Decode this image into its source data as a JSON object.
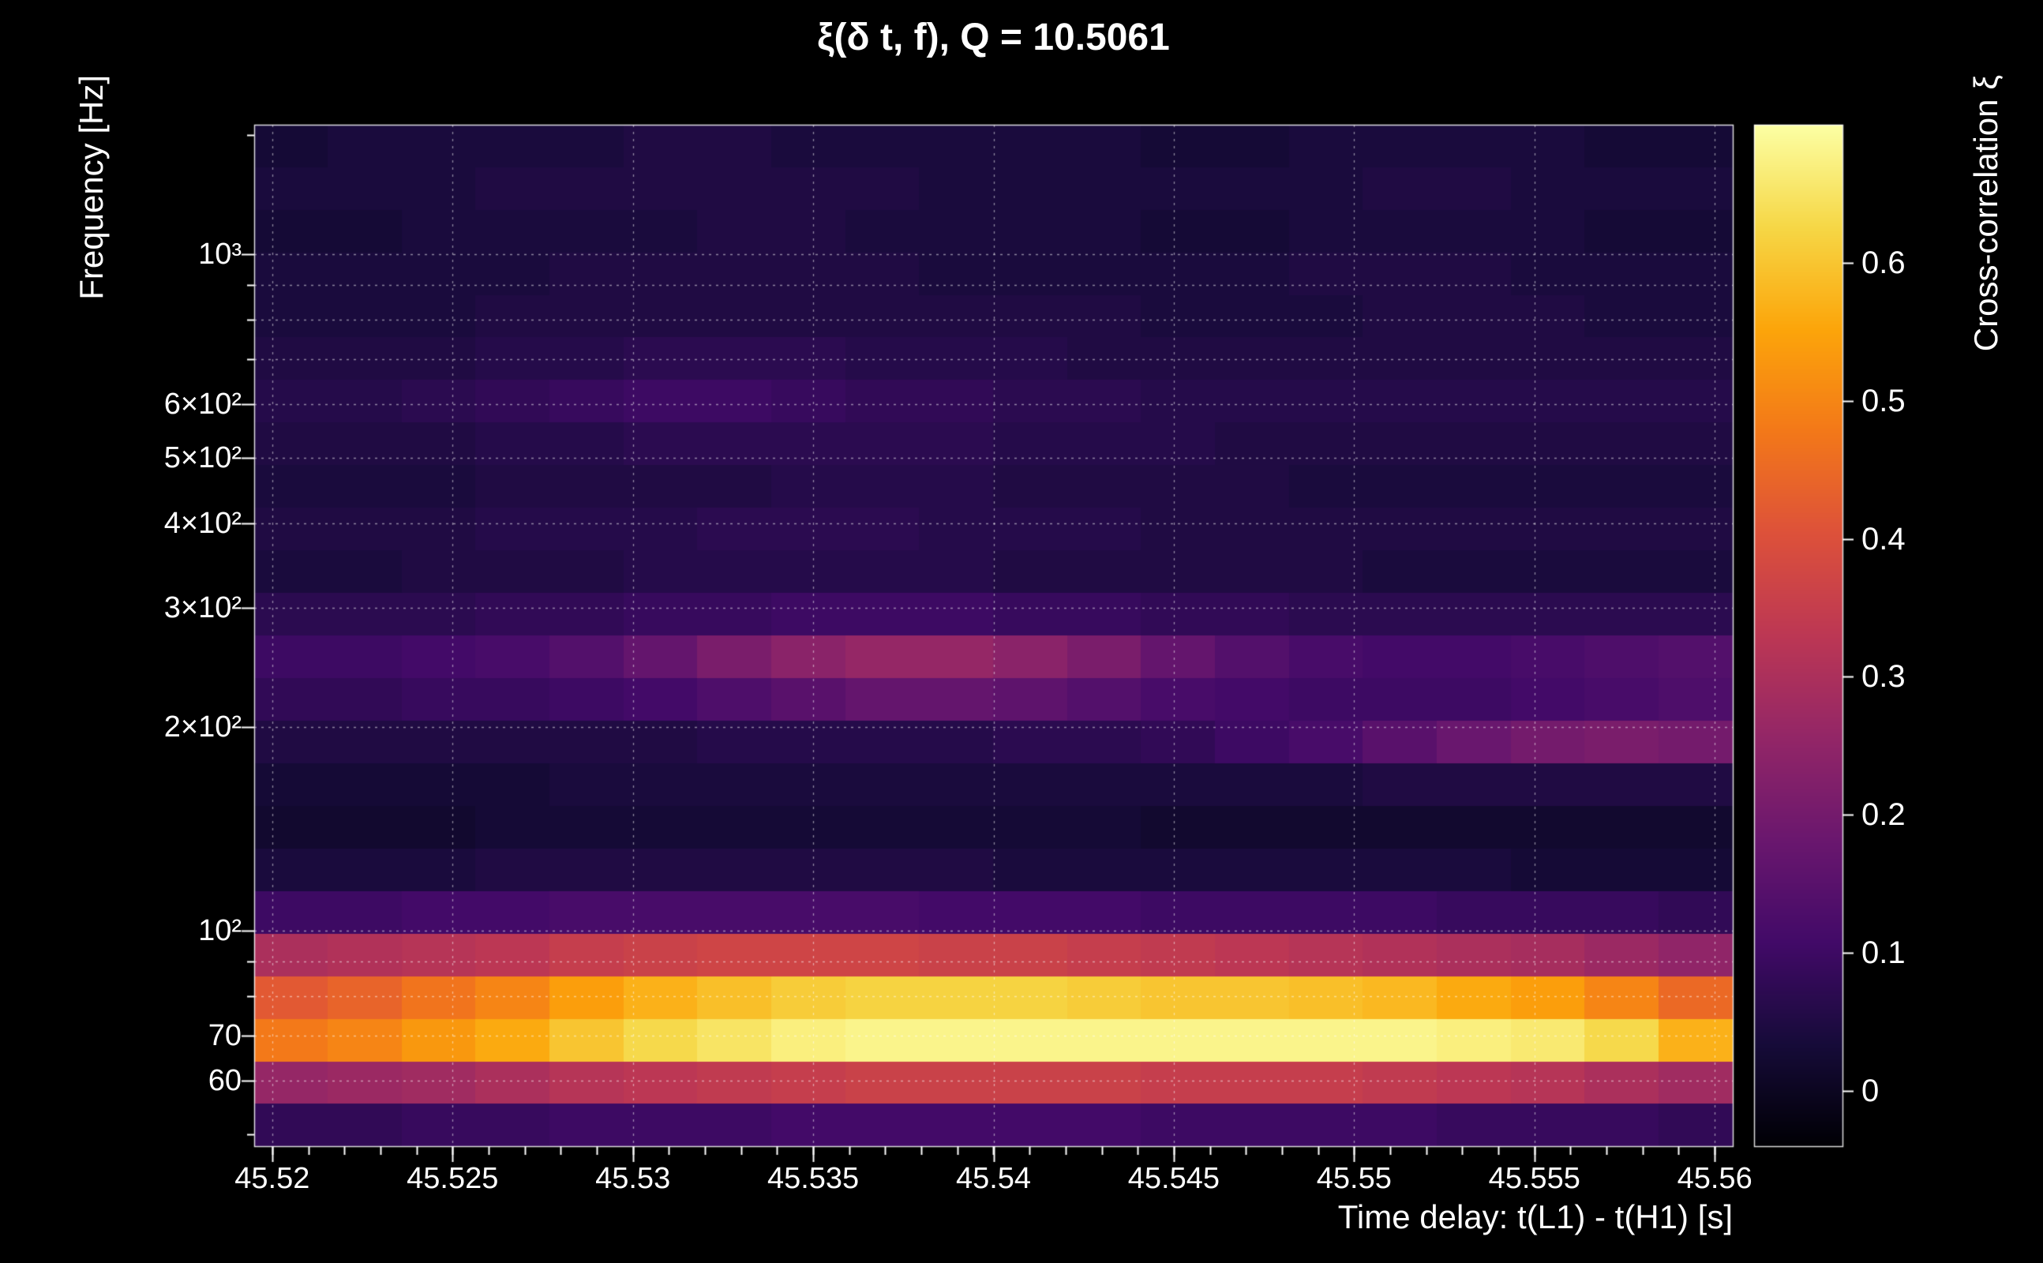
{
  "colors": {
    "background": "#000000",
    "text": "#ffffff",
    "grid": "#cccccc",
    "frame": "#ffffff"
  },
  "chart_data": {
    "type": "heatmap",
    "title": "ξ(δ t, f), Q = 10.5061",
    "xlabel": "Time delay: t(L1) - t(H1) [s]",
    "ylabel": "Frequency [Hz]",
    "colorbar_label": "Cross-correlation ξ",
    "x_range_s": [
      45.5195,
      45.5605
    ],
    "y_range_hz": [
      48,
      1554
    ],
    "y_scale": "log",
    "color_range": [
      -0.04,
      0.7
    ],
    "x_ticks": [
      45.52,
      45.525,
      45.53,
      45.535,
      45.54,
      45.545,
      45.55,
      45.555,
      45.56
    ],
    "x_tick_labels": [
      "45.52",
      "45.525",
      "45.53",
      "45.535",
      "45.54",
      "45.545",
      "45.55",
      "45.555",
      "45.56"
    ],
    "x_minor_tick_step": 0.001,
    "y_ticks_major": [
      60,
      70,
      100,
      200,
      300,
      400,
      500,
      600,
      1000
    ],
    "y_tick_labels": [
      "60",
      "70",
      "10²",
      "2×10²",
      "3×10²",
      "4×10²",
      "5×10²",
      "6×10²",
      "10³"
    ],
    "y_ticks_minor": [
      50,
      80,
      90,
      700,
      800,
      900,
      1500
    ],
    "grid_freqs_hz": [
      60,
      70,
      80,
      90,
      100,
      200,
      300,
      400,
      500,
      600,
      700,
      800,
      900,
      1000
    ],
    "colorbar_ticks": [
      0,
      0.1,
      0.2,
      0.3,
      0.4,
      0.5,
      0.6
    ],
    "colorbar_tick_labels": [
      "0",
      "0.1",
      "0.2",
      "0.3",
      "0.4",
      "0.5",
      "0.6"
    ],
    "colormap": {
      "name": "inferno",
      "stops": [
        [
          0.0,
          [
            0,
            0,
            4
          ]
        ],
        [
          0.1,
          [
            22,
            11,
            57
          ]
        ],
        [
          0.2,
          [
            66,
            10,
            104
          ]
        ],
        [
          0.3,
          [
            106,
            23,
            110
          ]
        ],
        [
          0.4,
          [
            147,
            38,
            103
          ]
        ],
        [
          0.5,
          [
            188,
            55,
            84
          ]
        ],
        [
          0.6,
          [
            221,
            81,
            58
          ]
        ],
        [
          0.7,
          [
            243,
            120,
            25
          ]
        ],
        [
          0.8,
          [
            252,
            165,
            10
          ]
        ],
        [
          0.9,
          [
            246,
            215,
            70
          ]
        ],
        [
          1.0,
          [
            252,
            255,
            164
          ]
        ]
      ]
    },
    "n_time_bins": 20,
    "freq_bin_edges_hz": [
      48,
      55.5,
      64.1,
      74.1,
      85.7,
      99.1,
      114.5,
      132.4,
      153.1,
      177,
      204.6,
      236.5,
      273.4,
      316,
      365.3,
      422.4,
      488.3,
      564.4,
      652.5,
      754.3,
      872,
      1008.1,
      1165.4,
      1347.3,
      1554
    ],
    "values_note": "rows bottom-to-top (lowest frequency first), 20 time columns left-to-right, cross-correlation xi",
    "values": [
      [
        0.08,
        0.08,
        0.09,
        0.09,
        0.1,
        0.1,
        0.1,
        0.11,
        0.11,
        0.11,
        0.11,
        0.11,
        0.1,
        0.1,
        0.1,
        0.1,
        0.09,
        0.09,
        0.09,
        0.08
      ],
      [
        0.26,
        0.27,
        0.28,
        0.3,
        0.32,
        0.33,
        0.34,
        0.35,
        0.36,
        0.36,
        0.36,
        0.36,
        0.35,
        0.35,
        0.35,
        0.34,
        0.33,
        0.32,
        0.3,
        0.28
      ],
      [
        0.48,
        0.5,
        0.53,
        0.56,
        0.6,
        0.63,
        0.65,
        0.67,
        0.68,
        0.68,
        0.68,
        0.68,
        0.68,
        0.68,
        0.68,
        0.68,
        0.67,
        0.66,
        0.63,
        0.57
      ],
      [
        0.42,
        0.44,
        0.47,
        0.5,
        0.54,
        0.57,
        0.59,
        0.61,
        0.62,
        0.62,
        0.62,
        0.61,
        0.6,
        0.6,
        0.59,
        0.58,
        0.56,
        0.54,
        0.5,
        0.45
      ],
      [
        0.3,
        0.31,
        0.32,
        0.33,
        0.35,
        0.36,
        0.37,
        0.37,
        0.37,
        0.36,
        0.36,
        0.35,
        0.34,
        0.33,
        0.32,
        0.31,
        0.3,
        0.29,
        0.27,
        0.25
      ],
      [
        0.1,
        0.1,
        0.11,
        0.11,
        0.12,
        0.12,
        0.12,
        0.12,
        0.12,
        0.11,
        0.11,
        0.11,
        0.1,
        0.1,
        0.1,
        0.1,
        0.09,
        0.09,
        0.09,
        0.08
      ],
      [
        0.04,
        0.04,
        0.04,
        0.05,
        0.05,
        0.05,
        0.05,
        0.05,
        0.05,
        0.05,
        0.04,
        0.04,
        0.04,
        0.04,
        0.04,
        0.04,
        0.04,
        0.03,
        0.03,
        0.03
      ],
      [
        0.02,
        0.02,
        0.02,
        0.03,
        0.03,
        0.03,
        0.03,
        0.03,
        0.03,
        0.03,
        0.03,
        0.03,
        0.02,
        0.02,
        0.02,
        0.02,
        0.02,
        0.02,
        0.02,
        0.02
      ],
      [
        0.03,
        0.03,
        0.03,
        0.03,
        0.04,
        0.04,
        0.04,
        0.04,
        0.04,
        0.04,
        0.04,
        0.04,
        0.04,
        0.04,
        0.04,
        0.05,
        0.05,
        0.05,
        0.05,
        0.05
      ],
      [
        0.05,
        0.05,
        0.05,
        0.05,
        0.05,
        0.05,
        0.06,
        0.06,
        0.06,
        0.06,
        0.07,
        0.07,
        0.08,
        0.1,
        0.12,
        0.15,
        0.18,
        0.2,
        0.21,
        0.2
      ],
      [
        0.08,
        0.08,
        0.09,
        0.09,
        0.1,
        0.11,
        0.13,
        0.15,
        0.17,
        0.17,
        0.16,
        0.14,
        0.12,
        0.11,
        0.1,
        0.1,
        0.1,
        0.11,
        0.12,
        0.13
      ],
      [
        0.1,
        0.1,
        0.11,
        0.12,
        0.14,
        0.17,
        0.21,
        0.24,
        0.26,
        0.26,
        0.24,
        0.21,
        0.17,
        0.14,
        0.12,
        0.11,
        0.11,
        0.12,
        0.13,
        0.14
      ],
      [
        0.07,
        0.07,
        0.07,
        0.08,
        0.08,
        0.09,
        0.09,
        0.1,
        0.1,
        0.1,
        0.09,
        0.09,
        0.08,
        0.08,
        0.07,
        0.07,
        0.07,
        0.07,
        0.07,
        0.07
      ],
      [
        0.04,
        0.04,
        0.05,
        0.05,
        0.05,
        0.06,
        0.06,
        0.06,
        0.06,
        0.06,
        0.05,
        0.05,
        0.05,
        0.05,
        0.05,
        0.04,
        0.04,
        0.04,
        0.04,
        0.04
      ],
      [
        0.05,
        0.05,
        0.05,
        0.06,
        0.06,
        0.06,
        0.07,
        0.07,
        0.07,
        0.06,
        0.06,
        0.06,
        0.05,
        0.05,
        0.05,
        0.05,
        0.05,
        0.05,
        0.05,
        0.05
      ],
      [
        0.04,
        0.04,
        0.04,
        0.05,
        0.05,
        0.05,
        0.05,
        0.06,
        0.06,
        0.06,
        0.05,
        0.05,
        0.05,
        0.05,
        0.04,
        0.04,
        0.04,
        0.04,
        0.04,
        0.04
      ],
      [
        0.05,
        0.05,
        0.05,
        0.06,
        0.06,
        0.07,
        0.07,
        0.07,
        0.07,
        0.07,
        0.06,
        0.06,
        0.06,
        0.05,
        0.05,
        0.05,
        0.05,
        0.05,
        0.05,
        0.05
      ],
      [
        0.06,
        0.06,
        0.07,
        0.08,
        0.09,
        0.1,
        0.1,
        0.09,
        0.08,
        0.08,
        0.07,
        0.07,
        0.06,
        0.06,
        0.06,
        0.06,
        0.06,
        0.06,
        0.06,
        0.06
      ],
      [
        0.05,
        0.05,
        0.05,
        0.06,
        0.06,
        0.07,
        0.07,
        0.07,
        0.06,
        0.06,
        0.06,
        0.05,
        0.05,
        0.05,
        0.05,
        0.05,
        0.05,
        0.05,
        0.05,
        0.05
      ],
      [
        0.04,
        0.04,
        0.04,
        0.05,
        0.05,
        0.05,
        0.05,
        0.05,
        0.05,
        0.05,
        0.05,
        0.05,
        0.04,
        0.04,
        0.04,
        0.05,
        0.05,
        0.05,
        0.04,
        0.04
      ],
      [
        0.04,
        0.04,
        0.04,
        0.04,
        0.05,
        0.05,
        0.05,
        0.05,
        0.05,
        0.04,
        0.04,
        0.04,
        0.04,
        0.04,
        0.05,
        0.05,
        0.05,
        0.04,
        0.04,
        0.04
      ],
      [
        0.03,
        0.03,
        0.04,
        0.04,
        0.04,
        0.04,
        0.05,
        0.05,
        0.04,
        0.04,
        0.04,
        0.04,
        0.03,
        0.03,
        0.04,
        0.04,
        0.04,
        0.04,
        0.03,
        0.03
      ],
      [
        0.04,
        0.04,
        0.04,
        0.05,
        0.05,
        0.05,
        0.05,
        0.05,
        0.05,
        0.04,
        0.04,
        0.04,
        0.04,
        0.04,
        0.04,
        0.05,
        0.05,
        0.04,
        0.04,
        0.04
      ],
      [
        0.03,
        0.04,
        0.04,
        0.04,
        0.04,
        0.05,
        0.05,
        0.04,
        0.04,
        0.04,
        0.04,
        0.04,
        0.03,
        0.03,
        0.04,
        0.04,
        0.04,
        0.04,
        0.03,
        0.03
      ]
    ]
  }
}
